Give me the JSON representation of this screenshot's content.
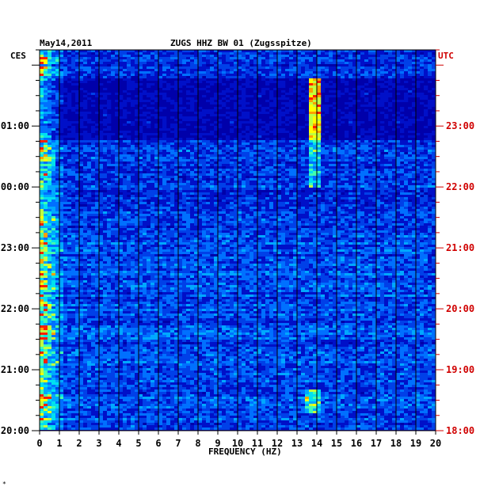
{
  "header": {
    "date": "May14,2011",
    "station": "ZUGS HHZ BW 01 (Zugsspitze)",
    "tz_left": "CES",
    "tz_right": "UTC"
  },
  "footer": {
    "corner_mark": "*"
  },
  "chart_data": {
    "type": "heatmap",
    "title": "ZUGS HHZ BW 01 (Zugsspitze)",
    "date": "May14,2011",
    "xlabel": "FREQUENCY (HZ)",
    "xlim": [
      0,
      20
    ],
    "x_ticks": [
      "0",
      "1",
      "2",
      "3",
      "4",
      "5",
      "6",
      "7",
      "8",
      "9",
      "10",
      "11",
      "12",
      "13",
      "14",
      "15",
      "16",
      "17",
      "18",
      "19",
      "20"
    ],
    "y_left_label": "CES",
    "y_right_label": "UTC",
    "y_left_ticks": [
      "01:00",
      "00:00",
      "23:00",
      "22:00",
      "21:00",
      "20:00"
    ],
    "y_right_ticks": [
      "23:00",
      "22:00",
      "21:00",
      "20:00",
      "19:00",
      "18:00"
    ],
    "ylim_hours": [
      0,
      6.25
    ],
    "grid": true,
    "colors": {
      "background": "#0000aa",
      "low": "#0010c0",
      "mid": "#00a0ff",
      "high": "#ffff00",
      "peak": "#ff2000",
      "grid": "#000000",
      "utc_text": "#d00000"
    },
    "features": [
      {
        "name": "low-frequency noise",
        "freq_range_hz": [
          0,
          1.2
        ],
        "intensity": "high"
      },
      {
        "name": "narrow band signal",
        "freq_hz": 13.9,
        "time_range_hours": [
          4,
          5.4
        ],
        "intensity": "high"
      },
      {
        "name": "quiet interval",
        "time_range_hours": [
          4.8,
          5.8
        ],
        "intensity": "low"
      }
    ]
  }
}
